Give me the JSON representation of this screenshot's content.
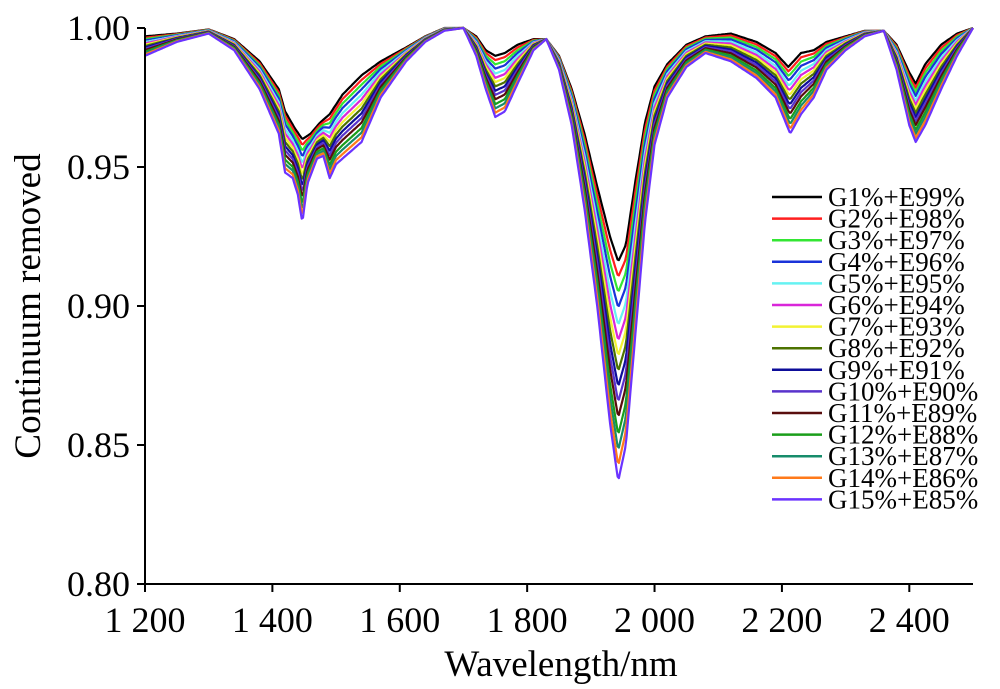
{
  "chart_data": {
    "type": "line",
    "xlabel": "Wavelength/nm",
    "ylabel": "Continuum removed",
    "xlim": [
      1200,
      2500
    ],
    "ylim": [
      0.8,
      1.0
    ],
    "xticks": [
      1200,
      1400,
      1600,
      1800,
      2000,
      2200,
      2400
    ],
    "xtick_labels": [
      "1 200",
      "1 400",
      "1 600",
      "1 800",
      "2 000",
      "2 200",
      "2 400"
    ],
    "yticks": [
      0.8,
      0.85,
      0.9,
      0.95,
      1.0
    ],
    "ytick_labels": [
      "0.80",
      "0.85",
      "0.90",
      "0.95",
      "1.00"
    ],
    "grid": false,
    "legend_position": "right",
    "min_curve_keypoints": [
      [
        1200,
        0.997
      ],
      [
        1250,
        0.998
      ],
      [
        1300,
        0.9995
      ],
      [
        1340,
        0.996
      ],
      [
        1380,
        0.988
      ],
      [
        1410,
        0.978
      ],
      [
        1420,
        0.97
      ],
      [
        1435,
        0.964
      ],
      [
        1447,
        0.96
      ],
      [
        1460,
        0.962
      ],
      [
        1475,
        0.966
      ],
      [
        1490,
        0.969
      ],
      [
        1510,
        0.976
      ],
      [
        1540,
        0.983
      ],
      [
        1570,
        0.988
      ],
      [
        1610,
        0.993
      ],
      [
        1640,
        0.997
      ],
      [
        1670,
        1.0
      ],
      [
        1700,
        1.0
      ],
      [
        1720,
        0.997
      ],
      [
        1735,
        0.992
      ],
      [
        1750,
        0.99
      ],
      [
        1765,
        0.991
      ],
      [
        1785,
        0.994
      ],
      [
        1810,
        0.996
      ],
      [
        1830,
        0.996
      ],
      [
        1850,
        0.99
      ],
      [
        1870,
        0.978
      ],
      [
        1890,
        0.962
      ],
      [
        1910,
        0.943
      ],
      [
        1930,
        0.925
      ],
      [
        1943,
        0.916
      ],
      [
        1955,
        0.922
      ],
      [
        1970,
        0.945
      ],
      [
        1985,
        0.966
      ],
      [
        2000,
        0.979
      ],
      [
        2020,
        0.987
      ],
      [
        2050,
        0.994
      ],
      [
        2080,
        0.997
      ],
      [
        2120,
        0.998
      ],
      [
        2160,
        0.995
      ],
      [
        2190,
        0.991
      ],
      [
        2210,
        0.986
      ],
      [
        2230,
        0.991
      ],
      [
        2250,
        0.992
      ],
      [
        2270,
        0.995
      ],
      [
        2300,
        0.997
      ],
      [
        2330,
        0.999
      ],
      [
        2360,
        0.999
      ],
      [
        2380,
        0.994
      ],
      [
        2400,
        0.984
      ],
      [
        2410,
        0.98
      ],
      [
        2425,
        0.987
      ],
      [
        2450,
        0.994
      ],
      [
        2475,
        0.998
      ],
      [
        2500,
        1.0
      ]
    ],
    "max_curve_keypoints": [
      [
        1200,
        0.99
      ],
      [
        1250,
        0.995
      ],
      [
        1300,
        0.998
      ],
      [
        1340,
        0.992
      ],
      [
        1380,
        0.978
      ],
      [
        1410,
        0.962
      ],
      [
        1420,
        0.948
      ],
      [
        1432,
        0.946
      ],
      [
        1440,
        0.94
      ],
      [
        1447,
        0.93
      ],
      [
        1455,
        0.944
      ],
      [
        1470,
        0.953
      ],
      [
        1480,
        0.954
      ],
      [
        1490,
        0.946
      ],
      [
        1500,
        0.951
      ],
      [
        1510,
        0.953
      ],
      [
        1525,
        0.956
      ],
      [
        1540,
        0.959
      ],
      [
        1570,
        0.975
      ],
      [
        1610,
        0.988
      ],
      [
        1640,
        0.995
      ],
      [
        1670,
        0.999
      ],
      [
        1700,
        1.0
      ],
      [
        1720,
        0.99
      ],
      [
        1735,
        0.978
      ],
      [
        1750,
        0.968
      ],
      [
        1765,
        0.97
      ],
      [
        1785,
        0.98
      ],
      [
        1810,
        0.992
      ],
      [
        1830,
        0.996
      ],
      [
        1850,
        0.985
      ],
      [
        1870,
        0.965
      ],
      [
        1890,
        0.935
      ],
      [
        1910,
        0.9
      ],
      [
        1930,
        0.858
      ],
      [
        1943,
        0.837
      ],
      [
        1955,
        0.85
      ],
      [
        1970,
        0.89
      ],
      [
        1985,
        0.93
      ],
      [
        2000,
        0.958
      ],
      [
        2020,
        0.975
      ],
      [
        2050,
        0.986
      ],
      [
        2080,
        0.991
      ],
      [
        2120,
        0.988
      ],
      [
        2160,
        0.982
      ],
      [
        2190,
        0.975
      ],
      [
        2213,
        0.962
      ],
      [
        2230,
        0.969
      ],
      [
        2250,
        0.975
      ],
      [
        2270,
        0.985
      ],
      [
        2300,
        0.992
      ],
      [
        2330,
        0.997
      ],
      [
        2360,
        0.999
      ],
      [
        2380,
        0.985
      ],
      [
        2400,
        0.965
      ],
      [
        2410,
        0.959
      ],
      [
        2425,
        0.965
      ],
      [
        2450,
        0.978
      ],
      [
        2475,
        0.99
      ],
      [
        2500,
        1.0
      ]
    ],
    "series": [
      {
        "name": "G1%+E99%",
        "color": "#000000",
        "depth_fraction": 0.0
      },
      {
        "name": "G2%+E98%",
        "color": "#ff1f1f",
        "depth_fraction": 0.07
      },
      {
        "name": "G3%+E97%",
        "color": "#33e633",
        "depth_fraction": 0.14
      },
      {
        "name": "G4%+E96%",
        "color": "#1a33d9",
        "depth_fraction": 0.21
      },
      {
        "name": "G5%+E95%",
        "color": "#66f2f2",
        "depth_fraction": 0.29
      },
      {
        "name": "G6%+E94%",
        "color": "#d926d9",
        "depth_fraction": 0.36
      },
      {
        "name": "G7%+E93%",
        "color": "#f2f233",
        "depth_fraction": 0.43
      },
      {
        "name": "G8%+E92%",
        "color": "#4d7300",
        "depth_fraction": 0.5
      },
      {
        "name": "G9%+E91%",
        "color": "#0d0d99",
        "depth_fraction": 0.57
      },
      {
        "name": "G10%+E90%",
        "color": "#5933cc",
        "depth_fraction": 0.64
      },
      {
        "name": "G11%+E89%",
        "color": "#590d0d",
        "depth_fraction": 0.71
      },
      {
        "name": "G12%+E88%",
        "color": "#1a9e1a",
        "depth_fraction": 0.79
      },
      {
        "name": "G13%+E87%",
        "color": "#178c6b",
        "depth_fraction": 0.86
      },
      {
        "name": "G14%+E86%",
        "color": "#ff7a1a",
        "depth_fraction": 0.93
      },
      {
        "name": "G15%+E85%",
        "color": "#6b33ff",
        "depth_fraction": 1.0
      }
    ]
  }
}
